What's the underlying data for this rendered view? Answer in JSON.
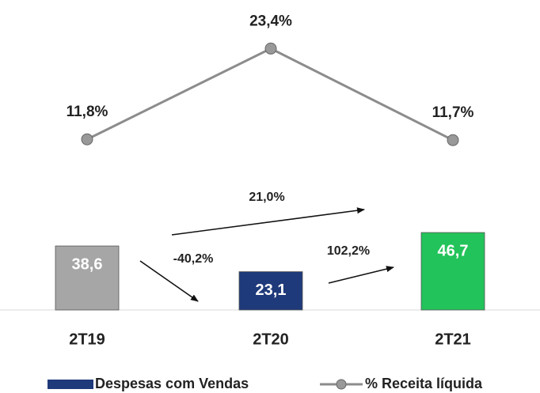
{
  "chart_data": {
    "type": "bar-line",
    "categories": [
      "2T19",
      "2T20",
      "2T21"
    ],
    "series": [
      {
        "name": "Despesas com Vendas",
        "type": "bar",
        "color": "#1f3a7a",
        "colors": [
          "#a6a6a6",
          "#1f3a7a",
          "#22c35a"
        ],
        "values": [
          38.6,
          23.1,
          46.7
        ],
        "value_labels": [
          "38,6",
          "23,1",
          "46,7"
        ]
      },
      {
        "name": "% Receita líquida",
        "type": "line",
        "axis": "y2",
        "color": "#8c8c8c",
        "values": [
          11.8,
          23.4,
          11.7
        ],
        "value_labels": [
          "11,8%",
          "23,4%",
          "11,7%"
        ]
      }
    ],
    "ylim": [
      0,
      186
    ],
    "y2lim": [
      -10,
      29.4
    ],
    "annotations": [
      "21,0%",
      "-40,2%",
      "102,2%"
    ],
    "legend": "bottom"
  }
}
